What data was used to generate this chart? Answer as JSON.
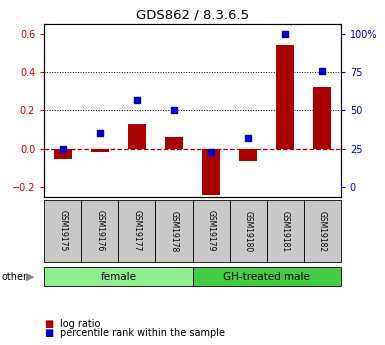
{
  "title": "GDS862 / 8.3.6.5",
  "samples": [
    "GSM19175",
    "GSM19176",
    "GSM19177",
    "GSM19178",
    "GSM19179",
    "GSM19180",
    "GSM19181",
    "GSM19182"
  ],
  "log_ratio": [
    -0.055,
    -0.015,
    0.13,
    0.06,
    -0.24,
    -0.065,
    0.54,
    0.32
  ],
  "percentile_rank_pct": [
    25,
    35,
    57,
    50,
    23,
    32,
    100,
    76
  ],
  "groups": [
    {
      "label": "female",
      "start": 0,
      "end": 4,
      "color": "#90EE90"
    },
    {
      "label": "GH-treated male",
      "start": 4,
      "end": 8,
      "color": "#44CC44"
    }
  ],
  "left_ylim": [
    -0.25,
    0.65
  ],
  "left_yticks": [
    -0.2,
    0.0,
    0.2,
    0.4,
    0.6
  ],
  "right_yticks": [
    0,
    25,
    50,
    75,
    100
  ],
  "bar_color": "#AA0000",
  "dot_color": "#0000CC",
  "zero_line_color": "#AA0000",
  "tick_color_left": "#CC0000",
  "tick_color_right": "#0000CC",
  "label_box_color": "#C8C8C8",
  "bar_width": 0.5
}
